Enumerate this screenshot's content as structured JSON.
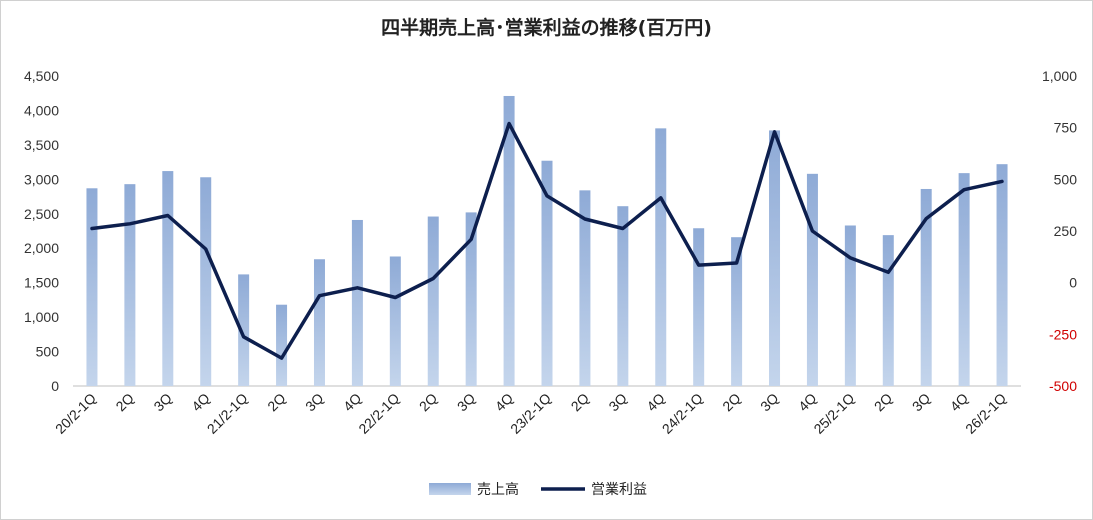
{
  "chart_data": {
    "type": "bar+line",
    "title": "四半期売上高･営業利益の推移(百万円)",
    "categories": [
      "20/2-1Q",
      "2Q",
      "3Q",
      "4Q",
      "21/2-1Q",
      "2Q",
      "3Q",
      "4Q",
      "22/2-1Q",
      "2Q",
      "3Q",
      "4Q",
      "23/2-1Q",
      "2Q",
      "3Q",
      "4Q",
      "24/2-1Q",
      "2Q",
      "3Q",
      "4Q",
      "25/2-1Q",
      "2Q",
      "3Q",
      "4Q",
      "26/2-1Q"
    ],
    "series": [
      {
        "name": "売上高",
        "type": "bar",
        "axis": "left",
        "color": "#9ab3d9",
        "values": [
          2870,
          2930,
          3120,
          3030,
          1620,
          1180,
          1840,
          2410,
          1880,
          2460,
          2520,
          4210,
          3270,
          2840,
          2610,
          3740,
          2290,
          2160,
          3710,
          3080,
          2330,
          2190,
          2860,
          3090,
          3220
        ]
      },
      {
        "name": "営業利益",
        "type": "line",
        "axis": "right",
        "color": "#0d1f4e",
        "values": [
          262,
          285,
          325,
          163,
          -262,
          -365,
          -63,
          -25,
          -72,
          20,
          210,
          770,
          420,
          308,
          262,
          410,
          85,
          95,
          730,
          250,
          120,
          50,
          310,
          450,
          490
        ]
      }
    ],
    "left_axis": {
      "min": 0,
      "max": 4500,
      "ticks": [
        "4,500",
        "4,000",
        "3,500",
        "3,000",
        "2,500",
        "2,000",
        "1,500",
        "1,000",
        "500",
        "0"
      ]
    },
    "right_axis": {
      "min": -500,
      "max": 1000,
      "ticks": [
        "1,000",
        "750",
        "500",
        "250",
        "0",
        "-250",
        "-500"
      ],
      "negative_color": "#d00000"
    },
    "grid": false,
    "legend_position": "bottom"
  }
}
